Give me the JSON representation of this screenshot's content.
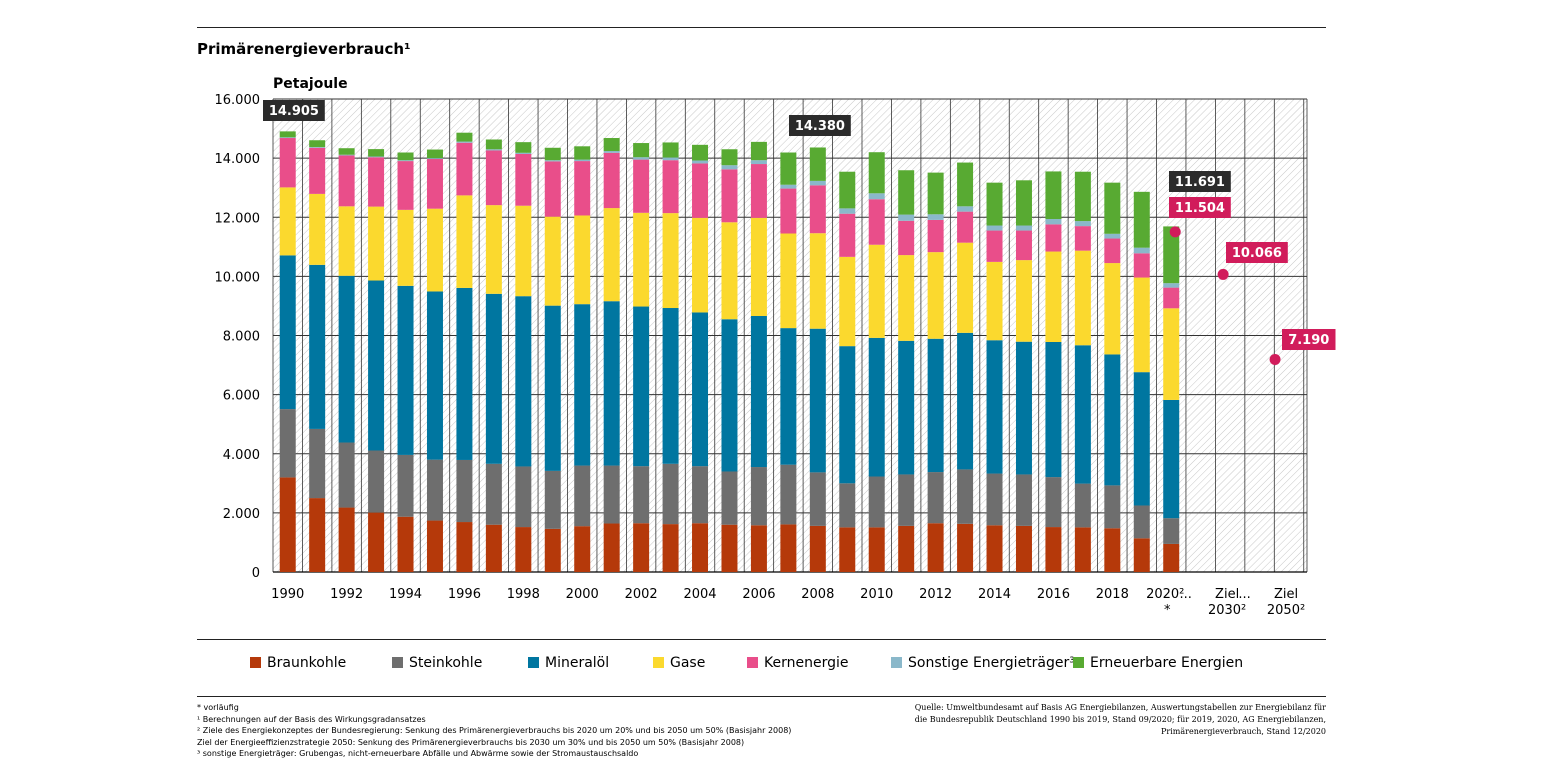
{
  "title": "Primärenergieverbrauch¹",
  "chart_data": {
    "type": "bar",
    "stacked": true,
    "ylabel": "Petajoule",
    "ylim": [
      0,
      16000
    ],
    "yticks": [
      "0",
      "2.000",
      "4.000",
      "6.000",
      "8.000",
      "10.000",
      "12.000",
      "14.000",
      "16.000"
    ],
    "grid": true,
    "categories": [
      "1990",
      "1991",
      "1992",
      "1993",
      "1994",
      "1995",
      "1996",
      "1997",
      "1998",
      "1999",
      "2000",
      "2001",
      "2002",
      "2003",
      "2004",
      "2005",
      "2006",
      "2007",
      "2008",
      "2009",
      "2010",
      "2011",
      "2012",
      "2013",
      "2014",
      "2015",
      "2016",
      "2017",
      "2018",
      "2019",
      "2020"
    ],
    "x_tick_labels": [
      "1990",
      "",
      "1992",
      "",
      "1994",
      "",
      "1996",
      "",
      "1998",
      "",
      "2000",
      "",
      "2002",
      "",
      "2004",
      "",
      "2006",
      "",
      "2008",
      "",
      "2010",
      "",
      "2012",
      "",
      "2014",
      "",
      "2016",
      "",
      "2018",
      "",
      "2020²"
    ],
    "x_tick_note": "*",
    "extra_tick_labels": [
      "...",
      "Ziel 2030²",
      "...",
      "Ziel 2050²"
    ],
    "series": [
      {
        "name": "Braunkohle",
        "color": "#b5390a",
        "values": [
          3200,
          2500,
          2180,
          2010,
          1870,
          1740,
          1690,
          1600,
          1520,
          1460,
          1550,
          1640,
          1650,
          1620,
          1650,
          1600,
          1580,
          1610,
          1560,
          1510,
          1510,
          1560,
          1650,
          1630,
          1580,
          1560,
          1520,
          1510,
          1480,
          1140,
          950
        ]
      },
      {
        "name": "Steinkohle",
        "color": "#6e6e6e",
        "values": [
          2310,
          2340,
          2200,
          2100,
          2090,
          2060,
          2100,
          2060,
          2050,
          1960,
          2050,
          1960,
          1930,
          2040,
          1930,
          1800,
          1970,
          2020,
          1810,
          1490,
          1720,
          1740,
          1730,
          1840,
          1750,
          1740,
          1690,
          1480,
          1450,
          1110,
          870
        ]
      },
      {
        "name": "Mineralöl",
        "color": "#0076a0",
        "values": [
          5200,
          5550,
          5640,
          5750,
          5720,
          5690,
          5820,
          5750,
          5760,
          5590,
          5460,
          5560,
          5400,
          5270,
          5200,
          5150,
          5110,
          4620,
          4860,
          4640,
          4690,
          4520,
          4510,
          4620,
          4510,
          4490,
          4570,
          4680,
          4430,
          4510,
          4000
        ]
      },
      {
        "name": "Gase",
        "color": "#fbd92e",
        "values": [
          2300,
          2400,
          2350,
          2500,
          2570,
          2800,
          3130,
          3000,
          3060,
          3010,
          3000,
          3150,
          3170,
          3210,
          3200,
          3280,
          3320,
          3200,
          3230,
          3020,
          3150,
          2900,
          2930,
          3050,
          2650,
          2760,
          3060,
          3200,
          3090,
          3200,
          3100
        ]
      },
      {
        "name": "Kernenergie",
        "color": "#e94e8a",
        "values": [
          1670,
          1560,
          1720,
          1670,
          1650,
          1680,
          1780,
          1850,
          1750,
          1870,
          1840,
          1870,
          1800,
          1790,
          1840,
          1790,
          1820,
          1520,
          1620,
          1460,
          1540,
          1160,
          1090,
          1050,
          1060,
          1000,
          920,
          830,
          830,
          820,
          700
        ]
      },
      {
        "name": "Sonstige Energieträger³",
        "color": "#8ab8ca",
        "values": [
          25,
          25,
          25,
          25,
          30,
          30,
          40,
          40,
          40,
          40,
          50,
          60,
          80,
          90,
          100,
          140,
          130,
          130,
          150,
          180,
          200,
          210,
          190,
          180,
          170,
          170,
          180,
          170,
          160,
          190,
          150
        ]
      },
      {
        "name": "Erneuerbare Energien",
        "color": "#58aa32",
        "values": [
          200,
          230,
          220,
          250,
          260,
          290,
          300,
          330,
          360,
          420,
          450,
          440,
          480,
          510,
          530,
          540,
          620,
          1090,
          1130,
          1240,
          1390,
          1500,
          1410,
          1480,
          1450,
          1530,
          1610,
          1670,
          1730,
          1890,
          1920
        ]
      }
    ],
    "totals": [
      {
        "category": "1990",
        "value": 14905,
        "label": "14.905"
      },
      {
        "category": "2008",
        "value": 14380,
        "label": "14.380"
      },
      {
        "category": "2020",
        "value": 11691,
        "label": "11.691"
      }
    ],
    "targets": [
      {
        "category": "2020",
        "value": 11504,
        "label": "11.504"
      },
      {
        "category": "Ziel 2030²",
        "value": 10066,
        "label": "10.066"
      },
      {
        "category": "Ziel 2050²",
        "value": 7190,
        "label": "7.190"
      }
    ],
    "legend_position": "bottom"
  },
  "colors": {
    "total_label": "#2b2b2b",
    "target": "#d11c5b",
    "grid": "#333333",
    "hatch": "#c8c8c8"
  },
  "footnotes": [
    "* vorläufig",
    "¹ Berechnungen auf der Basis des Wirkungsgradansatzes",
    "² Ziele des Energiekonzeptes der Bundesregierung: Senkung des Primärenergieverbrauchs bis 2020 um 20% und bis 2050 um 50% (Basisjahr 2008)",
    "Ziel der Energieeffizienzstrategie 2050: Senkung des Primärenergieverbrauchs bis 2030 um 30% und bis 2050 um 50% (Basisjahr 2008)",
    "³ sonstige Energieträger: Grubengas, nicht-erneuerbare Abfälle und Abwärme sowie der Stromaustauschsaldo"
  ],
  "source": "Quelle: Umweltbundesamt auf Basis AG Energiebilanzen, Auswertungstabellen zur Energiebilanz für die Bundesrepublik Deutschland 1990 bis 2019, Stand 09/2020; für 2019, 2020, AG Energiebilanzen, Primärenergieverbrauch, Stand 12/2020"
}
